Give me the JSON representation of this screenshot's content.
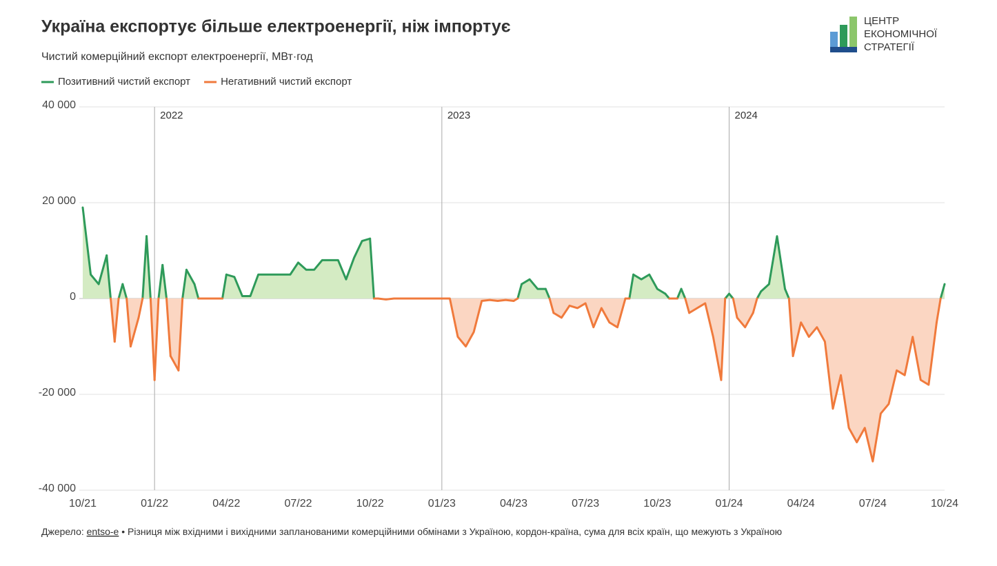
{
  "chart_data": {
    "type": "line",
    "title": "Україна експортує більше електроенергії, ніж імпортує",
    "subtitle": "Чистий комерційний експорт електроенергії, МВт·год",
    "source_label": "Джерело:",
    "source_link": "entso-e",
    "note": "• Різниця між вхідними і вихідними запланованими комерційними обмінами з Україною, кордон-країна, сума для всіх країн, що межують з Україною",
    "logo": [
      "ЦЕНТР",
      "ЕКОНОМІЧНОЇ",
      "СТРАТЕГІЇ"
    ],
    "categories": [
      "10/21",
      null,
      null,
      null,
      null,
      null,
      null,
      null,
      null,
      "01/22",
      null,
      null,
      null,
      null,
      null,
      null,
      null,
      null,
      "04/22",
      null,
      null,
      null,
      null,
      null,
      null,
      null,
      null,
      "07/22",
      null,
      null,
      null,
      null,
      null,
      null,
      null,
      null,
      "10/22",
      null,
      null,
      null,
      null,
      null,
      null,
      null,
      null,
      "01/23",
      null,
      null,
      null,
      null,
      null,
      null,
      null,
      null,
      "04/23",
      null,
      null,
      null,
      null,
      null,
      null,
      null,
      null,
      "07/23",
      null,
      null,
      null,
      null,
      null,
      null,
      null,
      null,
      "10/23",
      null,
      null,
      null,
      null,
      null,
      null,
      null,
      null,
      "01/24",
      null,
      null,
      null,
      null,
      null,
      null,
      null,
      null,
      "04/24",
      null,
      null,
      null,
      null,
      null,
      null,
      null,
      null,
      "07/24",
      null,
      null,
      null,
      null,
      null,
      null,
      null,
      null,
      "10/24"
    ],
    "year_markers": [
      {
        "category": "01/22",
        "label": "2022"
      },
      {
        "category": "01/23",
        "label": "2023"
      },
      {
        "category": "01/24",
        "label": "2024"
      }
    ],
    "series": [
      {
        "name": "Позитивний чистий експорт",
        "color": "#2e9a5a",
        "fill": "#d4ebc3",
        "values": [
          19000,
          5000,
          3000,
          9000,
          null,
          3000,
          null,
          null,
          13000,
          null,
          7000,
          null,
          null,
          6000,
          3000,
          null,
          null,
          null,
          5000,
          4500,
          500,
          500,
          5000,
          5000,
          5000,
          5000,
          5000,
          7500,
          6000,
          6000,
          8000,
          8000,
          8000,
          4000,
          8500,
          12000,
          12500,
          null,
          null,
          null,
          null,
          null,
          null,
          null,
          null,
          null,
          null,
          null,
          null,
          null,
          null,
          null,
          null,
          null,
          null,
          3000,
          4000,
          2000,
          2000,
          null,
          null,
          null,
          null,
          null,
          null,
          null,
          null,
          null,
          null,
          5000,
          4000,
          5000,
          2000,
          1000,
          null,
          2000,
          null,
          null,
          null,
          null,
          null,
          1000,
          null,
          null,
          null,
          1500,
          3000,
          13000,
          2000,
          null,
          null,
          null,
          null,
          null,
          null,
          null,
          null,
          null,
          null,
          null,
          null,
          null,
          null,
          null,
          null,
          null,
          null,
          null,
          3000
        ]
      },
      {
        "name": "Негативний чистий експорт",
        "color": "#f07a3c",
        "fill": "#fbd6c2",
        "values": [
          null,
          null,
          null,
          null,
          -9000,
          null,
          -10000,
          -4000,
          null,
          -17000,
          null,
          -12000,
          -15000,
          null,
          null,
          0,
          0,
          0,
          null,
          null,
          null,
          null,
          null,
          null,
          null,
          null,
          null,
          null,
          null,
          null,
          null,
          null,
          null,
          null,
          null,
          null,
          null,
          0,
          -200,
          0,
          0,
          0,
          0,
          0,
          0,
          0,
          0,
          -8000,
          -10000,
          -7000,
          -500,
          -300,
          -500,
          -300,
          -500,
          null,
          null,
          null,
          null,
          -3000,
          -4000,
          -1500,
          -2000,
          -1000,
          -6000,
          -2000,
          -5000,
          -6000,
          0,
          null,
          null,
          null,
          null,
          null,
          0,
          null,
          -3000,
          -2000,
          -1000,
          -8000,
          -17000,
          null,
          -4000,
          -6000,
          -3000,
          null,
          null,
          null,
          null,
          -12000,
          -5000,
          -8000,
          -6000,
          -9000,
          -23000,
          -16000,
          -27000,
          -30000,
          -27000,
          -34000,
          -24000,
          -22000,
          -15000,
          -16000,
          -8000,
          -17000,
          -18000,
          -5000,
          null
        ]
      }
    ],
    "ylim": [
      -40000,
      40000
    ],
    "yticks": [
      {
        "value": -40000,
        "label": "-40 000"
      },
      {
        "value": -20000,
        "label": "-20 000"
      },
      0,
      {
        "value": 20000,
        "label": "20 000"
      },
      {
        "value": 40000,
        "label": "40 000"
      }
    ],
    "grid": true
  }
}
